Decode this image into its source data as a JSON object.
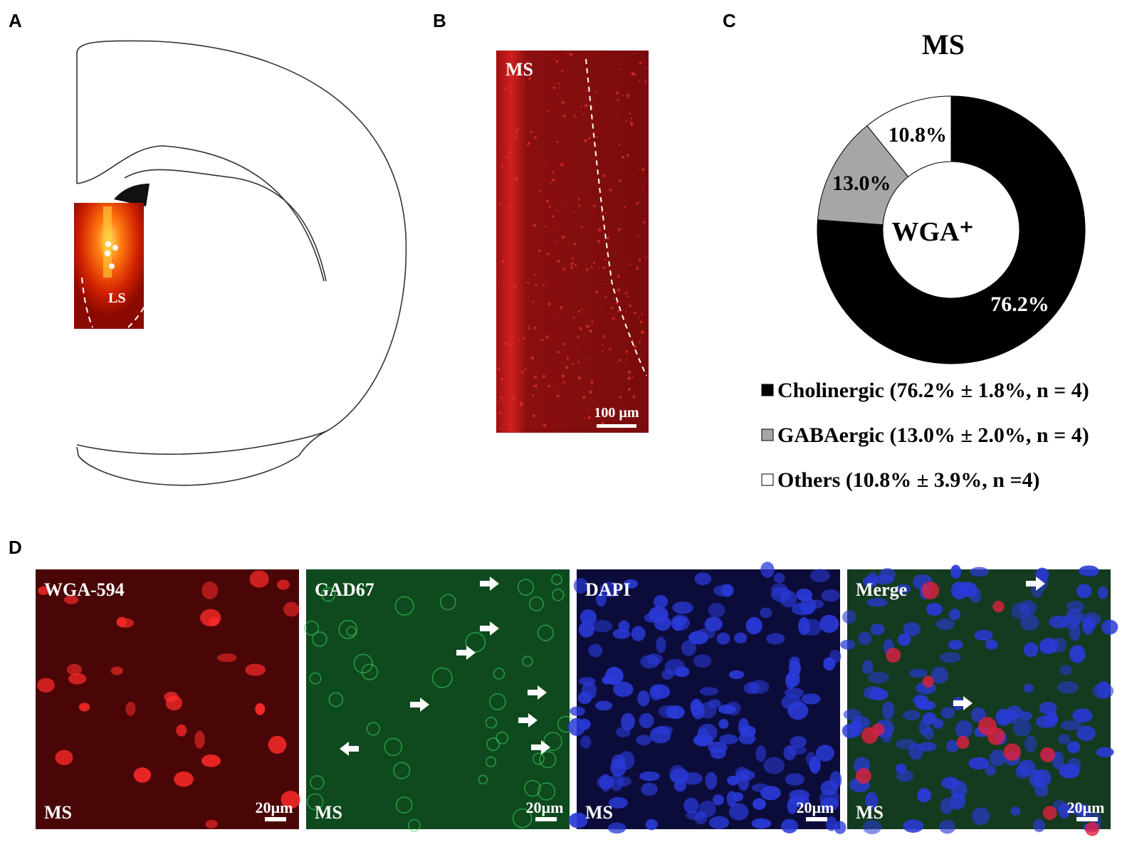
{
  "panel_labels": [
    "A",
    "B",
    "C",
    "D"
  ],
  "panel_a": {
    "region_label": "LS"
  },
  "panel_b": {
    "region_label": "MS",
    "scale_bar": "100 µm"
  },
  "chart_data": {
    "type": "pie",
    "title": "MS",
    "center_label": "WGA⁺",
    "categories": [
      "Cholinergic (76.2% ± 1.8%, n = 4)",
      "GABAergic (13.0% ± 2.0%, n = 4)",
      "Others (10.8% ± 3.9%, n =4)"
    ],
    "values": [
      76.2,
      13.0,
      10.8
    ],
    "value_labels": [
      "76.2%",
      "13.0%",
      "10.8%"
    ],
    "colors": [
      "#000000",
      "#a6a6a6",
      "#ffffff"
    ]
  },
  "panel_d": {
    "images": [
      {
        "channel": "WGA-594",
        "region_label": "MS",
        "scale_bar": "20µm"
      },
      {
        "channel": "GAD67",
        "region_label": "MS",
        "scale_bar": "20µm"
      },
      {
        "channel": "DAPI",
        "region_label": "MS",
        "scale_bar": "20µm"
      },
      {
        "channel": "Merge",
        "region_label": "MS",
        "scale_bar": "20µm"
      }
    ]
  }
}
